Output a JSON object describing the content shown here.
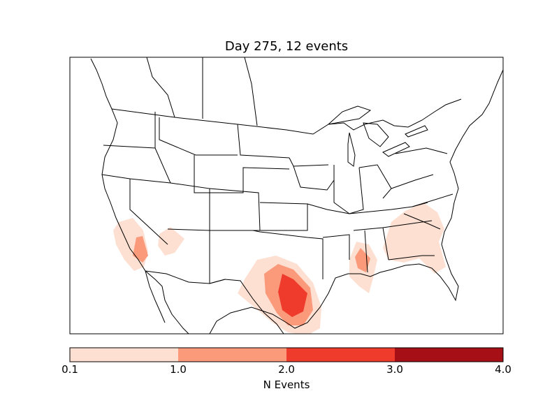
{
  "title": "Day 275, 12 events",
  "colorbar": {
    "label": "N Events",
    "ticks": [
      "0.1",
      "1.0",
      "2.0",
      "3.0",
      "4.0"
    ],
    "colors": [
      "#fde0d2",
      "#fb9a7b",
      "#ef3b2c",
      "#a50f15"
    ]
  },
  "colors": {
    "level1": "#fde0d2",
    "level2": "#fb9a7b",
    "level3": "#ef3b2c",
    "level4": "#a50f15"
  }
}
